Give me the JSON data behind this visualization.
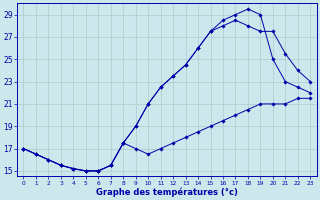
{
  "xlabel": "Graphe des températures (°c)",
  "bg_color": "#cce8ec",
  "grid_color": "#aacccc",
  "line_color": "#0000aa",
  "xlim": [
    -0.5,
    23.5
  ],
  "ylim": [
    14.5,
    30.0
  ],
  "yticks": [
    15,
    17,
    19,
    21,
    23,
    25,
    27,
    29
  ],
  "xticks": [
    0,
    1,
    2,
    3,
    4,
    5,
    6,
    7,
    8,
    9,
    10,
    11,
    12,
    13,
    14,
    15,
    16,
    17,
    18,
    19,
    20,
    21,
    22,
    23
  ],
  "line1_x": [
    0,
    1,
    2,
    3,
    4,
    5,
    6,
    7,
    8,
    9,
    10,
    11,
    12,
    13,
    14,
    15,
    16,
    17,
    18,
    19,
    20,
    21,
    22,
    23
  ],
  "line1_y": [
    17,
    16.5,
    16,
    15.5,
    15.2,
    15,
    15,
    15.5,
    17.5,
    19,
    21,
    22.5,
    23.5,
    24.5,
    26,
    27.5,
    28.5,
    29,
    29.5,
    29,
    25,
    23,
    22.5,
    22
  ],
  "line2_x": [
    0,
    1,
    2,
    3,
    4,
    5,
    6,
    7,
    8,
    9,
    10,
    11,
    12,
    13,
    14,
    15,
    16,
    17,
    18,
    19,
    20,
    21,
    22,
    23
  ],
  "line2_y": [
    17,
    16.5,
    16,
    15.5,
    15.2,
    15,
    15,
    15.5,
    17.5,
    19,
    21,
    22.5,
    23.5,
    24.5,
    26,
    27.5,
    28,
    28.5,
    28,
    27.5,
    27.5,
    25.5,
    24,
    23
  ],
  "line3_x": [
    0,
    1,
    2,
    3,
    4,
    5,
    6,
    7,
    8,
    9,
    10,
    11,
    12,
    13,
    14,
    15,
    16,
    17,
    18,
    19,
    20,
    21,
    22,
    23
  ],
  "line3_y": [
    17,
    16.5,
    16,
    15.5,
    15.2,
    15,
    15,
    15.5,
    17.5,
    17,
    16.5,
    17,
    17.5,
    18,
    18.5,
    19,
    19.5,
    20,
    20.5,
    21,
    21,
    21,
    21.5,
    21.5
  ]
}
